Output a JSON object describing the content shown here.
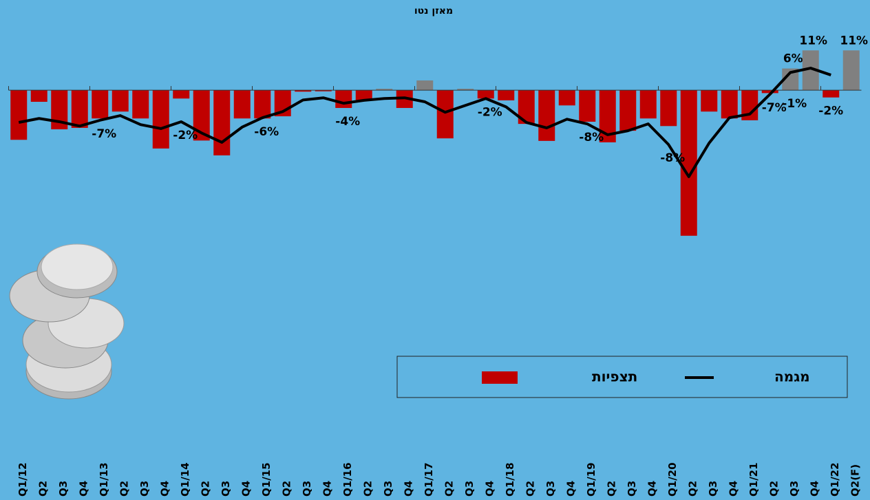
{
  "chart_data": {
    "type": "bar",
    "title": "מאזן נטו",
    "categories": [
      "Q1/12",
      "Q2",
      "Q3",
      "Q4",
      "Q1/13",
      "Q2",
      "Q3",
      "Q4",
      "Q1/14",
      "Q2",
      "Q3",
      "Q4",
      "Q1/15",
      "Q2",
      "Q3",
      "Q4",
      "Q1/16",
      "Q2",
      "Q3",
      "Q4",
      "Q1/17",
      "Q2",
      "Q3",
      "Q4",
      "Q1/18",
      "Q2",
      "Q3",
      "Q4",
      "Q1/19",
      "Q2",
      "Q3",
      "Q4",
      "Q1/20",
      "Q2",
      "Q3",
      "Q4",
      "Q1/21",
      "Q2",
      "Q3",
      "Q4",
      "Q1/22",
      "Q2(F)"
    ],
    "series": [
      {
        "name": "תצפיות",
        "type": "bar",
        "color": "#c00000",
        "positive_color": "#808080",
        "values": [
          -13.7,
          -3.2,
          -10.8,
          -10.4,
          -7.8,
          -5.9,
          -7.8,
          -16.1,
          -2.3,
          -13.9,
          -18,
          -7.8,
          -7.8,
          -7.2,
          -0.4,
          -0.3,
          -4.9,
          -2.7,
          0.4,
          -4.9,
          2.7,
          -13.3,
          0.4,
          -2.3,
          -2.8,
          -9.3,
          -14,
          -4.2,
          -8.7,
          -14.4,
          -11.2,
          -7.8,
          -9.9,
          -40.2,
          -5.9,
          -7.8,
          -8.3,
          -0.8,
          6,
          11,
          -2,
          11
        ],
        "value_labels": [
          null,
          null,
          null,
          null,
          null,
          null,
          null,
          null,
          null,
          null,
          null,
          null,
          null,
          null,
          null,
          null,
          null,
          null,
          null,
          null,
          null,
          null,
          null,
          null,
          null,
          null,
          null,
          null,
          null,
          null,
          null,
          null,
          null,
          null,
          null,
          null,
          null,
          null,
          "6%",
          "11%",
          "-2%",
          "11%"
        ]
      },
      {
        "name": "מגמה",
        "type": "line",
        "color": "#000000",
        "values": [
          -8.9,
          -7.8,
          -8.7,
          -9.9,
          -8.3,
          -7.0,
          -9.5,
          -10.6,
          -8.7,
          -11.8,
          -14.4,
          -10.2,
          -7.6,
          -5.9,
          -2.7,
          -2.1,
          -3.6,
          -2.8,
          -2.3,
          -2.1,
          -3.2,
          -6.1,
          -4.2,
          -2.3,
          -4.6,
          -8.9,
          -10.4,
          -8.0,
          -9.3,
          -12.3,
          -11.2,
          -9.3,
          -15.0,
          -23.9,
          -14.6,
          -7.6,
          -6.6,
          -1.1,
          4.9,
          6.1,
          4.2,
          null
        ]
      }
    ],
    "annotations": [
      null,
      null,
      null,
      null,
      "-7%",
      null,
      null,
      null,
      "-2%",
      null,
      null,
      null,
      "-6%",
      null,
      null,
      null,
      "-4%",
      null,
      null,
      null,
      null,
      null,
      null,
      "-2%",
      null,
      null,
      null,
      null,
      "-8%",
      null,
      null,
      null,
      "-8%",
      null,
      null,
      null,
      null,
      "-7%",
      "-1%",
      null,
      null,
      null
    ],
    "ylim": [
      -41,
      12
    ]
  }
}
